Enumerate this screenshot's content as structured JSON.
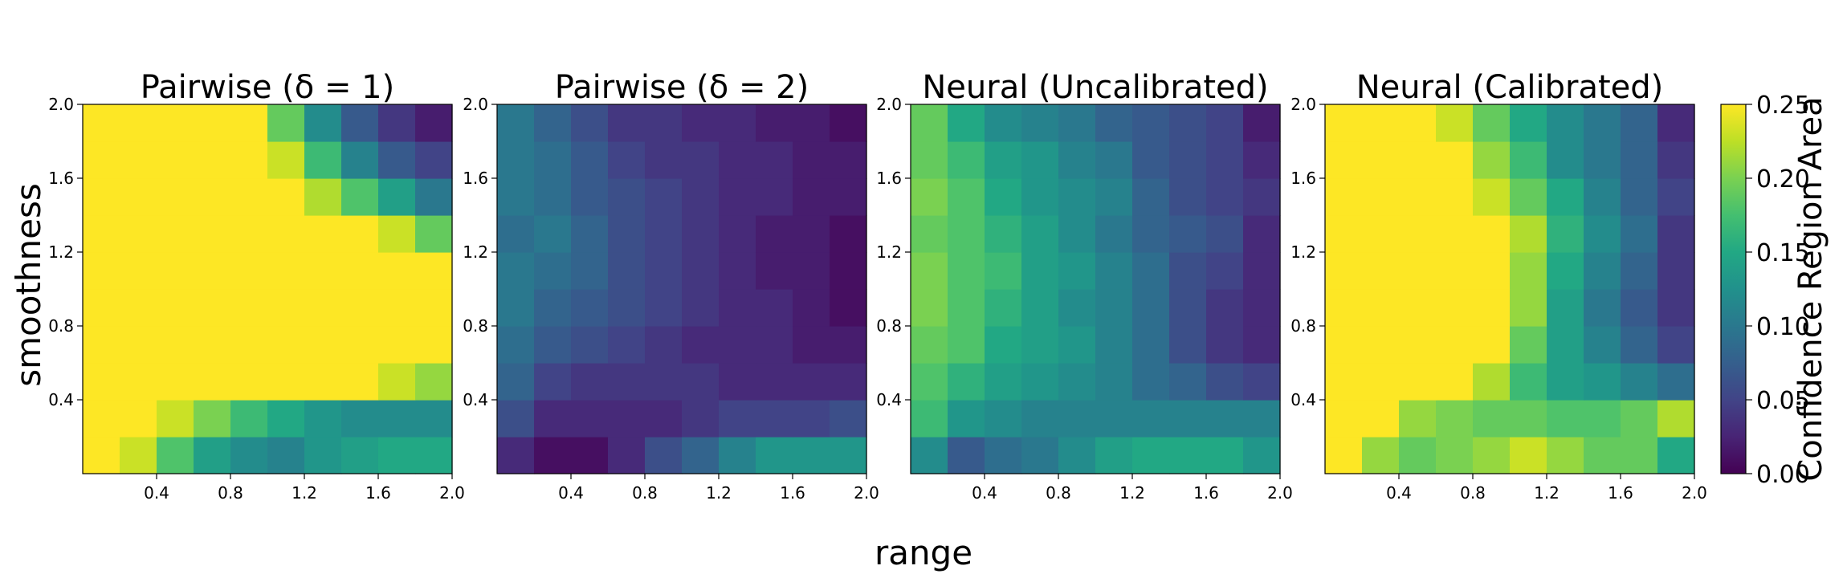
{
  "chart_data": [
    {
      "type": "heatmap",
      "title": "Pairwise (δ = 1)",
      "x": [
        0.1,
        0.3,
        0.5,
        0.7,
        0.9,
        1.1,
        1.3,
        1.5,
        1.7,
        1.9
      ],
      "y": [
        0.1,
        0.3,
        0.5,
        0.7,
        0.9,
        1.1,
        1.3,
        1.5,
        1.7,
        1.9
      ],
      "xticks": [
        "0.4",
        "0.8",
        "1.2",
        "1.6",
        "2.0"
      ],
      "yticks": [
        "0.4",
        "0.8",
        "1.2",
        "1.6",
        "2.0"
      ],
      "z": [
        [
          0.25,
          0.23,
          0.18,
          0.14,
          0.12,
          0.11,
          0.13,
          0.14,
          0.15,
          0.15
        ],
        [
          0.25,
          0.25,
          0.23,
          0.2,
          0.17,
          0.15,
          0.13,
          0.12,
          0.12,
          0.12
        ],
        [
          0.25,
          0.25,
          0.25,
          0.25,
          0.25,
          0.25,
          0.25,
          0.25,
          0.23,
          0.21
        ],
        [
          0.25,
          0.25,
          0.25,
          0.25,
          0.25,
          0.25,
          0.25,
          0.25,
          0.25,
          0.25
        ],
        [
          0.25,
          0.25,
          0.25,
          0.25,
          0.25,
          0.25,
          0.25,
          0.25,
          0.25,
          0.25
        ],
        [
          0.25,
          0.25,
          0.25,
          0.25,
          0.25,
          0.25,
          0.25,
          0.25,
          0.25,
          0.25
        ],
        [
          0.25,
          0.25,
          0.25,
          0.25,
          0.25,
          0.25,
          0.25,
          0.25,
          0.23,
          0.19
        ],
        [
          0.25,
          0.25,
          0.25,
          0.25,
          0.25,
          0.25,
          0.22,
          0.18,
          0.14,
          0.1
        ],
        [
          0.25,
          0.25,
          0.25,
          0.25,
          0.25,
          0.23,
          0.17,
          0.11,
          0.07,
          0.05
        ],
        [
          0.25,
          0.25,
          0.25,
          0.25,
          0.25,
          0.19,
          0.12,
          0.07,
          0.04,
          0.02
        ]
      ]
    },
    {
      "type": "heatmap",
      "title": "Pairwise (δ = 2)",
      "x": [
        0.1,
        0.3,
        0.5,
        0.7,
        0.9,
        1.1,
        1.3,
        1.5,
        1.7,
        1.9
      ],
      "y": [
        0.1,
        0.3,
        0.5,
        0.7,
        0.9,
        1.1,
        1.3,
        1.5,
        1.7,
        1.9
      ],
      "xticks": [
        "0.4",
        "0.8",
        "1.2",
        "1.6",
        "2.0"
      ],
      "yticks": [
        "0.4",
        "0.8",
        "1.2",
        "1.6",
        "2.0"
      ],
      "z": [
        [
          0.03,
          0.01,
          0.01,
          0.03,
          0.06,
          0.08,
          0.11,
          0.13,
          0.13,
          0.13
        ],
        [
          0.06,
          0.03,
          0.03,
          0.03,
          0.03,
          0.04,
          0.05,
          0.05,
          0.05,
          0.06
        ],
        [
          0.08,
          0.05,
          0.04,
          0.04,
          0.04,
          0.04,
          0.03,
          0.03,
          0.03,
          0.03
        ],
        [
          0.09,
          0.07,
          0.06,
          0.05,
          0.04,
          0.03,
          0.03,
          0.03,
          0.02,
          0.02
        ],
        [
          0.1,
          0.08,
          0.07,
          0.06,
          0.05,
          0.04,
          0.03,
          0.03,
          0.02,
          0.01
        ],
        [
          0.1,
          0.09,
          0.08,
          0.06,
          0.05,
          0.04,
          0.03,
          0.02,
          0.02,
          0.01
        ],
        [
          0.09,
          0.1,
          0.08,
          0.06,
          0.05,
          0.04,
          0.03,
          0.02,
          0.02,
          0.01
        ],
        [
          0.1,
          0.09,
          0.07,
          0.06,
          0.05,
          0.04,
          0.03,
          0.03,
          0.02,
          0.02
        ],
        [
          0.1,
          0.09,
          0.07,
          0.05,
          0.04,
          0.04,
          0.03,
          0.03,
          0.02,
          0.02
        ],
        [
          0.1,
          0.08,
          0.06,
          0.04,
          0.04,
          0.03,
          0.03,
          0.02,
          0.02,
          0.01
        ]
      ]
    },
    {
      "type": "heatmap",
      "title": "Neural (Uncalibrated)",
      "x": [
        0.1,
        0.3,
        0.5,
        0.7,
        0.9,
        1.1,
        1.3,
        1.5,
        1.7,
        1.9
      ],
      "y": [
        0.1,
        0.3,
        0.5,
        0.7,
        0.9,
        1.1,
        1.3,
        1.5,
        1.7,
        1.9
      ],
      "xticks": [
        "0.4",
        "0.8",
        "1.2",
        "1.6",
        "2.0"
      ],
      "yticks": [
        "0.4",
        "0.8",
        "1.2",
        "1.6",
        "2.0"
      ],
      "z": [
        [
          0.12,
          0.07,
          0.09,
          0.1,
          0.12,
          0.14,
          0.15,
          0.15,
          0.15,
          0.13
        ],
        [
          0.17,
          0.13,
          0.12,
          0.11,
          0.11,
          0.11,
          0.11,
          0.11,
          0.11,
          0.11
        ],
        [
          0.18,
          0.16,
          0.14,
          0.13,
          0.12,
          0.11,
          0.09,
          0.08,
          0.06,
          0.05
        ],
        [
          0.19,
          0.18,
          0.15,
          0.14,
          0.13,
          0.11,
          0.09,
          0.06,
          0.04,
          0.03
        ],
        [
          0.2,
          0.18,
          0.16,
          0.14,
          0.12,
          0.11,
          0.09,
          0.06,
          0.04,
          0.03
        ],
        [
          0.2,
          0.18,
          0.17,
          0.14,
          0.13,
          0.11,
          0.09,
          0.06,
          0.05,
          0.03
        ],
        [
          0.19,
          0.18,
          0.16,
          0.14,
          0.12,
          0.1,
          0.08,
          0.07,
          0.06,
          0.03
        ],
        [
          0.2,
          0.18,
          0.15,
          0.13,
          0.12,
          0.11,
          0.08,
          0.06,
          0.05,
          0.04
        ],
        [
          0.19,
          0.17,
          0.14,
          0.13,
          0.11,
          0.1,
          0.07,
          0.06,
          0.05,
          0.03
        ],
        [
          0.19,
          0.15,
          0.12,
          0.11,
          0.1,
          0.08,
          0.07,
          0.06,
          0.05,
          0.02
        ]
      ]
    },
    {
      "type": "heatmap",
      "title": "Neural (Calibrated)",
      "x": [
        0.1,
        0.3,
        0.5,
        0.7,
        0.9,
        1.1,
        1.3,
        1.5,
        1.7,
        1.9
      ],
      "y": [
        0.1,
        0.3,
        0.5,
        0.7,
        0.9,
        1.1,
        1.3,
        1.5,
        1.7,
        1.9
      ],
      "xticks": [
        "0.4",
        "0.8",
        "1.2",
        "1.6",
        "2.0"
      ],
      "yticks": [
        "0.4",
        "0.8",
        "1.2",
        "1.6",
        "2.0"
      ],
      "z": [
        [
          0.25,
          0.21,
          0.19,
          0.2,
          0.21,
          0.23,
          0.21,
          0.19,
          0.19,
          0.15
        ],
        [
          0.25,
          0.25,
          0.21,
          0.2,
          0.19,
          0.19,
          0.18,
          0.18,
          0.19,
          0.22
        ],
        [
          0.25,
          0.25,
          0.25,
          0.25,
          0.22,
          0.17,
          0.14,
          0.13,
          0.11,
          0.09
        ],
        [
          0.25,
          0.25,
          0.25,
          0.25,
          0.25,
          0.19,
          0.14,
          0.11,
          0.08,
          0.05
        ],
        [
          0.25,
          0.25,
          0.25,
          0.25,
          0.25,
          0.21,
          0.14,
          0.1,
          0.07,
          0.04
        ],
        [
          0.25,
          0.25,
          0.25,
          0.25,
          0.25,
          0.21,
          0.15,
          0.11,
          0.08,
          0.04
        ],
        [
          0.25,
          0.25,
          0.25,
          0.25,
          0.25,
          0.22,
          0.16,
          0.12,
          0.09,
          0.04
        ],
        [
          0.25,
          0.25,
          0.25,
          0.25,
          0.23,
          0.19,
          0.15,
          0.11,
          0.08,
          0.05
        ],
        [
          0.25,
          0.25,
          0.25,
          0.25,
          0.21,
          0.17,
          0.12,
          0.1,
          0.08,
          0.04
        ],
        [
          0.25,
          0.25,
          0.25,
          0.23,
          0.19,
          0.15,
          0.12,
          0.1,
          0.08,
          0.03
        ]
      ]
    }
  ],
  "shared": {
    "xlabel": "range",
    "ylabel": "smoothness",
    "xlim": [
      0,
      2.0
    ],
    "ylim": [
      0,
      2.0
    ],
    "colormap": "viridis",
    "colorbar": {
      "label": "Confidence Region Area",
      "range": [
        0.0,
        0.25
      ],
      "ticks": [
        "0.00",
        "0.05",
        "0.10",
        "0.15",
        "0.20",
        "0.25"
      ]
    }
  }
}
